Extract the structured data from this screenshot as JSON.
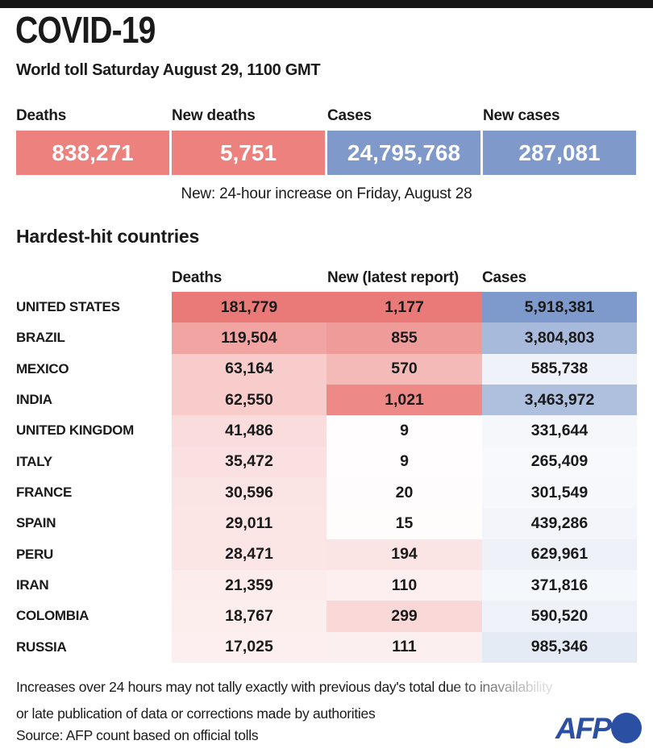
{
  "page": {
    "title": "COVID-19",
    "subtitle": "World toll Saturday August 29, 1100 GMT"
  },
  "colors": {
    "top_bar": "#161616",
    "text": "#1a1a1a",
    "box_red": "#ed817e",
    "box_blue": "#7e99ca",
    "cell_red": "#ea7a77",
    "cell_blue": "#7e99cb",
    "afp_blue": "#2b4fa2"
  },
  "summary_stats": [
    {
      "label": "Deaths",
      "value": "838,271",
      "color_key": "box_red"
    },
    {
      "label": "New deaths",
      "value": "5,751",
      "color_key": "box_red"
    },
    {
      "label": "Cases",
      "value": "24,795,768",
      "color_key": "box_blue"
    },
    {
      "label": "New cases",
      "value": "287,081",
      "color_key": "box_blue"
    }
  ],
  "note": "New: 24-hour increase on Friday, August 28",
  "chart_data": {
    "type": "table",
    "title": "Hardest-hit countries",
    "columns": [
      "Deaths",
      "New (latest report)",
      "Cases"
    ],
    "shading": "cell background intensity proportional to value per column; deaths and new columns shade to red, cases column shades to blue",
    "max": {
      "deaths": 181779,
      "new": 1177,
      "cases": 5918381
    },
    "rows": [
      {
        "country": "UNITED STATES",
        "deaths": "181,779",
        "deaths_n": 181779,
        "new": "1,177",
        "new_n": 1177,
        "cases": "5,918,381",
        "cases_n": 5918381
      },
      {
        "country": "BRAZIL",
        "deaths": "119,504",
        "deaths_n": 119504,
        "new": "855",
        "new_n": 855,
        "cases": "3,804,803",
        "cases_n": 3804803
      },
      {
        "country": "MEXICO",
        "deaths": "63,164",
        "deaths_n": 63164,
        "new": "570",
        "new_n": 570,
        "cases": "585,738",
        "cases_n": 585738
      },
      {
        "country": "INDIA",
        "deaths": "62,550",
        "deaths_n": 62550,
        "new": "1,021",
        "new_n": 1021,
        "cases": "3,463,972",
        "cases_n": 3463972
      },
      {
        "country": "UNITED KINGDOM",
        "deaths": "41,486",
        "deaths_n": 41486,
        "new": "9",
        "new_n": 9,
        "cases": "331,644",
        "cases_n": 331644
      },
      {
        "country": "ITALY",
        "deaths": "35,472",
        "deaths_n": 35472,
        "new": "9",
        "new_n": 9,
        "cases": "265,409",
        "cases_n": 265409
      },
      {
        "country": "FRANCE",
        "deaths": "30,596",
        "deaths_n": 30596,
        "new": "20",
        "new_n": 20,
        "cases": "301,549",
        "cases_n": 301549
      },
      {
        "country": "SPAIN",
        "deaths": "29,011",
        "deaths_n": 29011,
        "new": "15",
        "new_n": 15,
        "cases": "439,286",
        "cases_n": 439286
      },
      {
        "country": "PERU",
        "deaths": "28,471",
        "deaths_n": 28471,
        "new": "194",
        "new_n": 194,
        "cases": "629,961",
        "cases_n": 629961
      },
      {
        "country": "IRAN",
        "deaths": "21,359",
        "deaths_n": 21359,
        "new": "110",
        "new_n": 110,
        "cases": "371,816",
        "cases_n": 371816
      },
      {
        "country": "COLOMBIA",
        "deaths": "18,767",
        "deaths_n": 18767,
        "new": "299",
        "new_n": 299,
        "cases": "590,520",
        "cases_n": 590520
      },
      {
        "country": "RUSSIA",
        "deaths": "17,025",
        "deaths_n": 17025,
        "new": "111",
        "new_n": 111,
        "cases": "985,346",
        "cases_n": 985346
      }
    ]
  },
  "footer": {
    "line1": "Increases over 24 hours may not tally exactly with previous day's total due to inavailability",
    "line2": "or late publication of data or corrections made by authorities",
    "source": "Source: AFP count based on official tolls",
    "logo_text": "AFP"
  }
}
